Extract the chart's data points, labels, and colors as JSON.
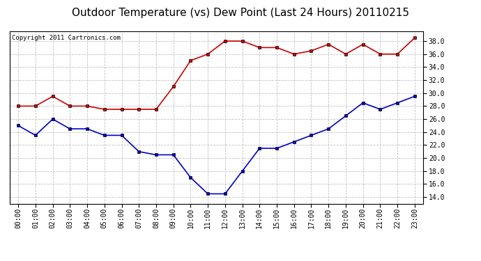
{
  "title": "Outdoor Temperature (vs) Dew Point (Last 24 Hours) 20110215",
  "copyright_text": "Copyright 2011 Cartronics.com",
  "hours": [
    "00:00",
    "01:00",
    "02:00",
    "03:00",
    "04:00",
    "05:00",
    "06:00",
    "07:00",
    "08:00",
    "09:00",
    "10:00",
    "11:00",
    "12:00",
    "13:00",
    "14:00",
    "15:00",
    "16:00",
    "17:00",
    "18:00",
    "19:00",
    "20:00",
    "21:00",
    "22:00",
    "23:00"
  ],
  "temp_red": [
    28.0,
    28.0,
    29.5,
    28.0,
    28.0,
    27.5,
    27.5,
    27.5,
    27.5,
    31.0,
    35.0,
    36.0,
    38.0,
    38.0,
    37.0,
    37.0,
    36.0,
    36.5,
    37.5,
    36.0,
    37.5,
    36.0,
    36.0,
    38.5
  ],
  "dew_blue": [
    25.0,
    23.5,
    26.0,
    24.5,
    24.5,
    23.5,
    23.5,
    21.0,
    20.5,
    20.5,
    17.0,
    14.5,
    14.5,
    18.0,
    21.5,
    21.5,
    22.5,
    23.5,
    24.5,
    26.5,
    28.5,
    27.5,
    28.5,
    29.5
  ],
  "red_color": "#cc0000",
  "blue_color": "#0000cc",
  "marker_color": "#000000",
  "background_color": "#ffffff",
  "grid_color": "#c0c0c0",
  "ylim": [
    13.0,
    39.5
  ],
  "yticks": [
    14.0,
    16.0,
    18.0,
    20.0,
    22.0,
    24.0,
    26.0,
    28.0,
    30.0,
    32.0,
    34.0,
    36.0,
    38.0
  ],
  "title_fontsize": 11,
  "copyright_fontsize": 6.5,
  "tick_fontsize": 7,
  "marker_size": 3.5,
  "line_width": 1.2
}
